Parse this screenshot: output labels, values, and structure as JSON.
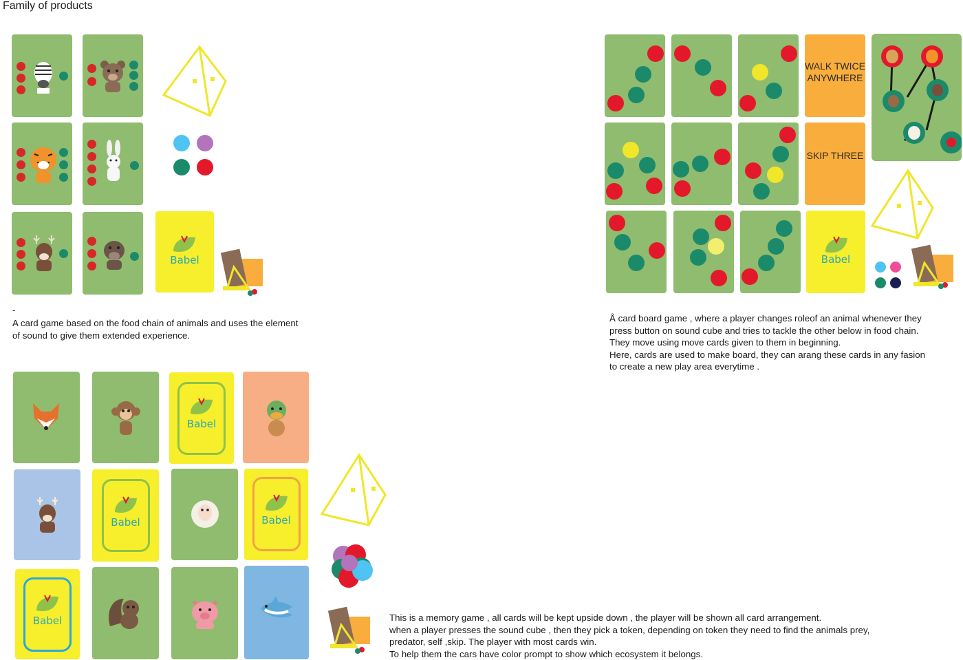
{
  "page": {
    "title": "Family of products"
  },
  "game1": {
    "dash": "-",
    "description": "A card game based on the food chain of animals and uses the element\nof sound to give them extended experience.",
    "cards": [
      {
        "animal": "zebra-icon"
      },
      {
        "animal": "bear-icon"
      },
      {
        "animal": "tiger-icon"
      },
      {
        "animal": "rabbit-icon"
      },
      {
        "animal": "deer-icon"
      },
      {
        "animal": "boar-icon"
      }
    ],
    "cover_logo": "Babel",
    "tokens": [
      "#4fc3f2",
      "#b374bb",
      "#1b8a6b",
      "#e3192b"
    ]
  },
  "game2": {
    "description": "Å card board game , where a player changes roleof an animal whenever they\npress button on sound cube and tries to tackle the other below in food chain.\nThey move using move cards given to them in beginning.\nHere, cards are used to make board, they can arang these cards in any fasion\nto create a new play area everytime .",
    "move_cards": [
      "WALK TWICE\nANYWHERE",
      "SKIP THREE"
    ],
    "cover_logo": "Babel",
    "tokens": [
      "#4fc3f2",
      "#ef4d9a",
      "#1b8a6b",
      "#1a1f4f"
    ],
    "board_animals": [
      "lion-icon",
      "tiger-icon",
      "monkey-icon",
      "deer-icon",
      "sheep-icon",
      "leaf-icon"
    ]
  },
  "game3": {
    "description": "This is a memory game , all cards will be kept upside down , the player will be shown all card arrangement.\nwhen a player presses the sound cube , then they pick a token, depending on token they need to find the animals prey,\npredator, self ,skip. The player with most cards win.\nTo help them the cars have color prompt to show which ecosystem it belongs.",
    "cards": [
      {
        "type": "animal",
        "animal": "fox-icon",
        "color": "green"
      },
      {
        "type": "animal",
        "animal": "monkey-icon",
        "color": "green"
      },
      {
        "type": "cover",
        "frame": "#8fc24a",
        "logo": "Babel"
      },
      {
        "type": "animal",
        "animal": "duck-icon",
        "color": "peach"
      },
      {
        "type": "animal",
        "animal": "reindeer-icon",
        "color": "blue1"
      },
      {
        "type": "cover",
        "frame": "#8fc24a",
        "logo": "Babel"
      },
      {
        "type": "animal",
        "animal": "sheep-icon",
        "color": "green"
      },
      {
        "type": "cover",
        "frame": "#f4a04a",
        "logo": "Babel"
      },
      {
        "type": "cover",
        "frame": "#2aa9d8",
        "logo": "Babel"
      },
      {
        "type": "animal",
        "animal": "squirrel-icon",
        "color": "green"
      },
      {
        "type": "animal",
        "animal": "pig-icon",
        "color": "green"
      },
      {
        "type": "animal",
        "animal": "shark-icon",
        "color": "blue2"
      }
    ]
  }
}
